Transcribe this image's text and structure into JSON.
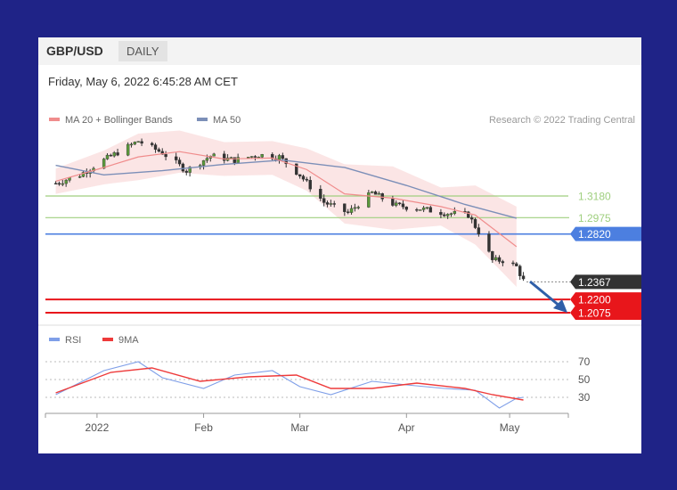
{
  "header": {
    "symbol": "GBP/USD",
    "timeframe": "DAILY"
  },
  "datetime": "Friday, May 6, 2022 6:45:28 AM CET",
  "legend": {
    "ma20_label": "MA 20 + Bollinger Bands",
    "ma50_label": "MA 50",
    "credit": "Research © 2022 Trading Central",
    "rsi_label": "RSI",
    "rsi_ma_label": "9MA"
  },
  "colors": {
    "background": "#1f2387",
    "ma20": "#f08c8c",
    "bands_fill": "#fadcdc",
    "ma50": "#7c8fb8",
    "resistance_green": "#9fcf7f",
    "resistance_blue": "#4c7fe0",
    "support_red": "#e8161b",
    "current_price": "#333333",
    "arrow": "#2f5fa8",
    "rsi": "#7f9fe8",
    "rsi_ma": "#ee3a3a"
  },
  "chart_data": {
    "type": "line",
    "title": "GBP/USD",
    "timeframe": "DAILY",
    "x_tick_labels": [
      "2022",
      "Feb",
      "Mar",
      "Apr",
      "May"
    ],
    "price_levels": [
      {
        "label": "1.3180",
        "value": 1.318,
        "kind": "resistance",
        "color": "#9fcf7f"
      },
      {
        "label": "1.2975",
        "value": 1.2975,
        "kind": "resistance",
        "color": "#9fcf7f"
      },
      {
        "label": "1.2820",
        "value": 1.282,
        "kind": "resistance",
        "color": "#4c7fe0"
      },
      {
        "label": "1.2367",
        "value": 1.2367,
        "kind": "current",
        "color": "#333333"
      },
      {
        "label": "1.2200",
        "value": 1.22,
        "kind": "support",
        "color": "#e8161b"
      },
      {
        "label": "1.2075",
        "value": 1.2075,
        "kind": "support",
        "color": "#e8161b"
      }
    ],
    "series": [
      {
        "name": "MA 20 + Bollinger Bands",
        "type": "line",
        "x": [
          "2021-12-20",
          "2022-01-03",
          "2022-01-13",
          "2022-01-25",
          "2022-02-07",
          "2022-02-21",
          "2022-03-03",
          "2022-03-14",
          "2022-03-28",
          "2022-04-11",
          "2022-04-21",
          "2022-05-03"
        ],
        "values": [
          1.332,
          1.345,
          1.355,
          1.36,
          1.353,
          1.354,
          1.343,
          1.32,
          1.316,
          1.308,
          1.3,
          1.27
        ]
      },
      {
        "name": "MA 50",
        "type": "line",
        "x": [
          "2021-12-20",
          "2022-01-03",
          "2022-01-20",
          "2022-02-07",
          "2022-02-24",
          "2022-03-14",
          "2022-04-01",
          "2022-04-18",
          "2022-05-03"
        ],
        "values": [
          1.347,
          1.338,
          1.342,
          1.348,
          1.352,
          1.345,
          1.328,
          1.31,
          1.297
        ]
      },
      {
        "name": "GBP/USD close",
        "type": "line",
        "x": [
          "2021-12-20",
          "2021-12-27",
          "2022-01-03",
          "2022-01-13",
          "2022-01-20",
          "2022-01-27",
          "2022-02-03",
          "2022-02-10",
          "2022-02-17",
          "2022-02-23",
          "2022-03-01",
          "2022-03-08",
          "2022-03-15",
          "2022-03-22",
          "2022-03-29",
          "2022-04-05",
          "2022-04-12",
          "2022-04-19",
          "2022-04-22",
          "2022-04-26",
          "2022-04-29",
          "2022-05-03",
          "2022-05-05"
        ],
        "values": [
          1.33,
          1.338,
          1.352,
          1.37,
          1.359,
          1.342,
          1.356,
          1.352,
          1.357,
          1.355,
          1.338,
          1.312,
          1.302,
          1.321,
          1.309,
          1.306,
          1.302,
          1.3,
          1.284,
          1.257,
          1.257,
          1.251,
          1.238
        ]
      }
    ],
    "rsi": {
      "levels": [
        70,
        50,
        30
      ],
      "series": [
        {
          "name": "RSI",
          "x": [
            "2021-12-20",
            "2022-01-03",
            "2022-01-13",
            "2022-01-20",
            "2022-02-01",
            "2022-02-10",
            "2022-02-21",
            "2022-03-01",
            "2022-03-10",
            "2022-03-22",
            "2022-04-01",
            "2022-04-12",
            "2022-04-21",
            "2022-04-28",
            "2022-05-03",
            "2022-05-05"
          ],
          "values": [
            33,
            60,
            70,
            52,
            40,
            55,
            60,
            42,
            33,
            48,
            44,
            40,
            38,
            18,
            29,
            30
          ]
        },
        {
          "name": "9MA",
          "x": [
            "2021-12-20",
            "2022-01-05",
            "2022-01-17",
            "2022-01-31",
            "2022-02-14",
            "2022-02-28",
            "2022-03-10",
            "2022-03-22",
            "2022-04-04",
            "2022-04-18",
            "2022-04-26",
            "2022-05-05"
          ],
          "values": [
            35,
            58,
            63,
            48,
            53,
            55,
            40,
            40,
            46,
            40,
            33,
            27
          ]
        }
      ]
    }
  }
}
